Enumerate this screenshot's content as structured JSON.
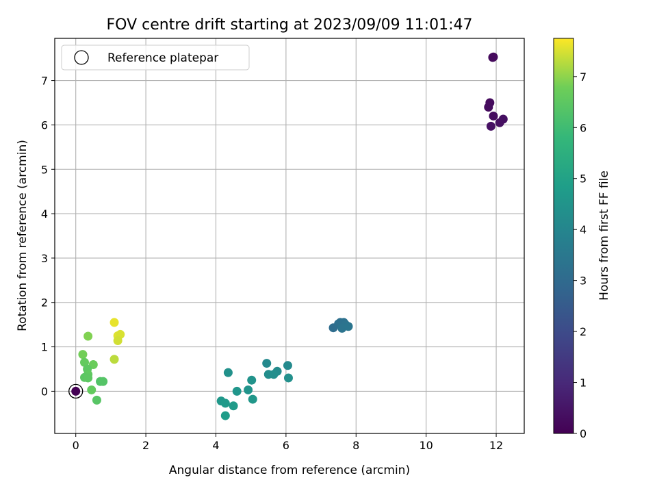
{
  "chart_data": {
    "type": "scatter",
    "title": "FOV centre drift starting at 2023/09/09 11:01:47",
    "xlabel": "Angular distance from reference (arcmin)",
    "ylabel": "Rotation from reference (arcmin)",
    "xlim": [
      -0.6,
      12.8
    ],
    "ylim": [
      -0.95,
      7.95
    ],
    "xticks": [
      0,
      2,
      4,
      6,
      8,
      10,
      12
    ],
    "yticks": [
      0,
      1,
      2,
      3,
      4,
      5,
      6,
      7
    ],
    "grid": true,
    "legend": {
      "placement": "top-left",
      "entries": [
        "Reference platepar"
      ]
    },
    "colorbar": {
      "label": "Hours from first FF file",
      "range": [
        0,
        7.75
      ],
      "ticks": [
        0,
        1,
        2,
        3,
        4,
        5,
        6,
        7
      ],
      "colormap": "viridis"
    },
    "reference_point": {
      "x": 0,
      "y": 0
    },
    "points": [
      {
        "x": 0.0,
        "y": 0.0,
        "c": 0.0
      },
      {
        "x": 11.9,
        "y": 7.52,
        "c": 0.2
      },
      {
        "x": 11.92,
        "y": 7.53,
        "c": 0.22
      },
      {
        "x": 11.82,
        "y": 6.5,
        "c": 0.25
      },
      {
        "x": 11.78,
        "y": 6.4,
        "c": 0.28
      },
      {
        "x": 11.92,
        "y": 6.2,
        "c": 0.3
      },
      {
        "x": 12.2,
        "y": 6.13,
        "c": 0.35
      },
      {
        "x": 12.1,
        "y": 6.05,
        "c": 0.38
      },
      {
        "x": 11.85,
        "y": 5.97,
        "c": 0.4
      },
      {
        "x": 7.35,
        "y": 1.43,
        "c": 3.1
      },
      {
        "x": 7.5,
        "y": 1.52,
        "c": 3.15
      },
      {
        "x": 7.55,
        "y": 1.55,
        "c": 3.2
      },
      {
        "x": 7.65,
        "y": 1.55,
        "c": 3.25
      },
      {
        "x": 7.7,
        "y": 1.5,
        "c": 3.3
      },
      {
        "x": 7.6,
        "y": 1.42,
        "c": 3.35
      },
      {
        "x": 7.78,
        "y": 1.46,
        "c": 3.4
      },
      {
        "x": 5.45,
        "y": 0.63,
        "c": 4.1
      },
      {
        "x": 6.05,
        "y": 0.58,
        "c": 4.15
      },
      {
        "x": 5.75,
        "y": 0.45,
        "c": 4.2
      },
      {
        "x": 5.5,
        "y": 0.38,
        "c": 4.25
      },
      {
        "x": 5.65,
        "y": 0.38,
        "c": 4.3
      },
      {
        "x": 6.07,
        "y": 0.3,
        "c": 4.35
      },
      {
        "x": 4.35,
        "y": 0.42,
        "c": 4.4
      },
      {
        "x": 5.02,
        "y": 0.25,
        "c": 4.45
      },
      {
        "x": 4.92,
        "y": 0.03,
        "c": 4.5
      },
      {
        "x": 4.6,
        "y": 0.0,
        "c": 4.55
      },
      {
        "x": 5.05,
        "y": -0.18,
        "c": 4.6
      },
      {
        "x": 4.15,
        "y": -0.22,
        "c": 4.65
      },
      {
        "x": 4.27,
        "y": -0.27,
        "c": 4.7
      },
      {
        "x": 4.5,
        "y": -0.33,
        "c": 4.75
      },
      {
        "x": 4.27,
        "y": -0.55,
        "c": 4.8
      },
      {
        "x": 0.2,
        "y": 0.83,
        "c": 6.8
      },
      {
        "x": 0.35,
        "y": 1.24,
        "c": 6.9
      },
      {
        "x": 0.25,
        "y": 0.65,
        "c": 6.6
      },
      {
        "x": 0.5,
        "y": 0.6,
        "c": 6.7
      },
      {
        "x": 0.33,
        "y": 0.5,
        "c": 6.5
      },
      {
        "x": 0.35,
        "y": 0.38,
        "c": 6.55
      },
      {
        "x": 0.25,
        "y": 0.31,
        "c": 6.45
      },
      {
        "x": 0.35,
        "y": 0.3,
        "c": 6.5
      },
      {
        "x": 0.7,
        "y": 0.22,
        "c": 6.3
      },
      {
        "x": 0.78,
        "y": 0.22,
        "c": 6.35
      },
      {
        "x": 0.45,
        "y": 0.03,
        "c": 6.6
      },
      {
        "x": 0.6,
        "y": -0.2,
        "c": 6.4
      },
      {
        "x": 1.1,
        "y": 1.55,
        "c": 7.6
      },
      {
        "x": 1.2,
        "y": 1.25,
        "c": 7.55
      },
      {
        "x": 1.27,
        "y": 1.28,
        "c": 7.5
      },
      {
        "x": 1.2,
        "y": 1.14,
        "c": 7.45
      },
      {
        "x": 1.1,
        "y": 0.72,
        "c": 7.3
      }
    ]
  }
}
